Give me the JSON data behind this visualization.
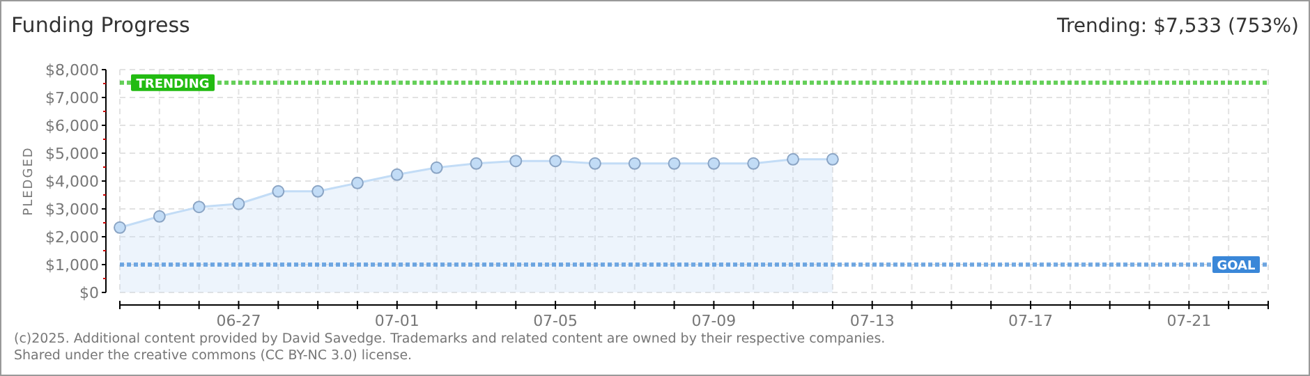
{
  "chart_data": {
    "type": "area",
    "title": "Funding Progress",
    "subtitle": "Trending: $7,533 (753%)",
    "ylabel": "PLEDGED",
    "x": [
      "--06-24",
      "--06-25",
      "--06-26",
      "--06-27",
      "--06-28",
      "--06-29",
      "--06-30",
      "--07-01",
      "--07-02",
      "--07-03",
      "--07-04",
      "--07-05",
      "--07-06",
      "--07-07",
      "--07-08",
      "--07-09",
      "--07-10",
      "--07-11",
      "--07-12"
    ],
    "series": [
      {
        "color": "#c2dcf6",
        "values": [
          2330,
          2730,
          3070,
          3180,
          3630,
          3630,
          3930,
          4230,
          4480,
          4630,
          4720,
          4720,
          4630,
          4630,
          4630,
          4630,
          4630,
          4780,
          4780
        ]
      }
    ],
    "xlim": [
      "--06-24",
      "--07-23"
    ],
    "xticks": [
      {
        "value": "--06-24",
        "label": null
      },
      {
        "value": "--06-25",
        "label": null
      },
      {
        "value": "--06-26",
        "label": null
      },
      {
        "value": "--06-27",
        "label": "06-27"
      },
      {
        "value": "--06-28",
        "label": null
      },
      {
        "value": "--06-29",
        "label": null
      },
      {
        "value": "--06-30",
        "label": null
      },
      {
        "value": "--07-01",
        "label": "07-01"
      },
      {
        "value": "--07-02",
        "label": null
      },
      {
        "value": "--07-03",
        "label": null
      },
      {
        "value": "--07-04",
        "label": null
      },
      {
        "value": "--07-05",
        "label": "07-05"
      },
      {
        "value": "--07-06",
        "label": null
      },
      {
        "value": "--07-07",
        "label": null
      },
      {
        "value": "--07-08",
        "label": null
      },
      {
        "value": "--07-09",
        "label": "07-09"
      },
      {
        "value": "--07-10",
        "label": null
      },
      {
        "value": "--07-11",
        "label": null
      },
      {
        "value": "--07-12",
        "label": null
      },
      {
        "value": "--07-13",
        "label": "07-13"
      },
      {
        "value": "--07-14",
        "label": null
      },
      {
        "value": "--07-15",
        "label": null
      },
      {
        "value": "--07-16",
        "label": null
      },
      {
        "value": "--07-17",
        "label": "07-17"
      },
      {
        "value": "--07-18",
        "label": null
      },
      {
        "value": "--07-19",
        "label": null
      },
      {
        "value": "--07-20",
        "label": null
      },
      {
        "value": "--07-21",
        "label": "07-21"
      },
      {
        "value": "--07-22",
        "label": null
      },
      {
        "value": "--07-23",
        "label": null
      }
    ],
    "ylim": [
      0,
      8000
    ],
    "yticks": [
      {
        "value": 0,
        "label": "$0"
      },
      {
        "value": 500,
        "label": null
      },
      {
        "value": 1000,
        "label": "$1,000"
      },
      {
        "value": 1500,
        "label": null
      },
      {
        "value": 2000,
        "label": "$2,000"
      },
      {
        "value": 2500,
        "label": null
      },
      {
        "value": 3000,
        "label": "$3,000"
      },
      {
        "value": 3500,
        "label": null
      },
      {
        "value": 4000,
        "label": "$4,000"
      },
      {
        "value": 4500,
        "label": null
      },
      {
        "value": 5000,
        "label": "$5,000"
      },
      {
        "value": 5500,
        "label": null
      },
      {
        "value": 6000,
        "label": "$6,000"
      },
      {
        "value": 6500,
        "label": null
      },
      {
        "value": 7000,
        "label": "$7,000"
      },
      {
        "value": 7500,
        "label": null
      },
      {
        "value": 8000,
        "label": "$8,000"
      }
    ],
    "ref_lines": [
      {
        "axis": "y",
        "value": 7533,
        "label": "TRENDING",
        "color": "#22bb11",
        "line_style": "dotted"
      },
      {
        "axis": "y",
        "value": 1000,
        "label": "GOAL",
        "color": "#3a87d8",
        "line_style": "dotted"
      }
    ],
    "grid": true,
    "marker": "circle",
    "annotations": [
      "(c)2025. Additional content provided by David Savedge. Trademarks and related content are owned by their respective companies.",
      "Shared under the creative commons (CC BY-NC 3.0) license."
    ]
  }
}
